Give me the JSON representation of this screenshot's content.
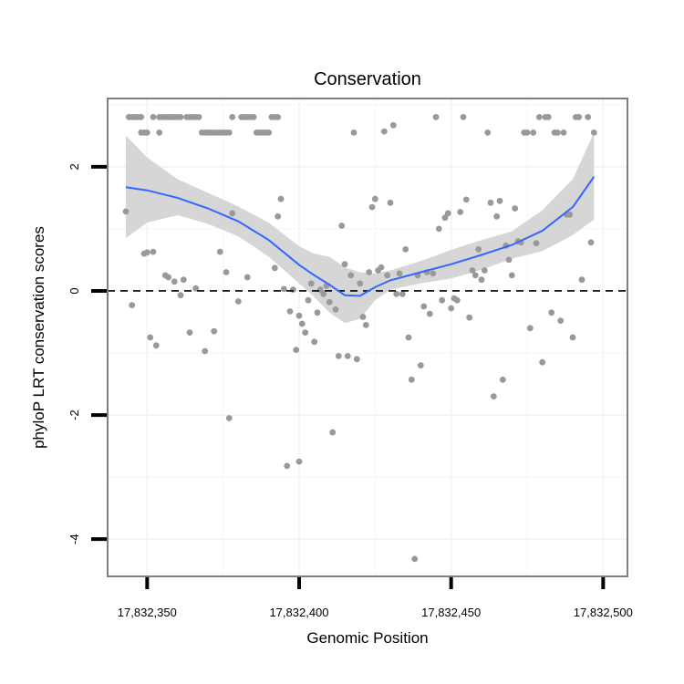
{
  "chart_data": {
    "type": "scatter",
    "title": "Conservation",
    "xlabel": "Genomic Position",
    "ylabel": "phyloP LRT conservation scores",
    "xlim": [
      17832337,
      17832508
    ],
    "ylim": [
      -4.6,
      3.1
    ],
    "x_ticks": [
      17832350,
      17832400,
      17832450,
      17832500
    ],
    "x_tick_labels": [
      "17,832,350",
      "17,832,400",
      "17,832,450",
      "17,832,500"
    ],
    "y_ticks": [
      -4,
      -2,
      0,
      2
    ],
    "y_tick_labels": [
      "-4",
      "-2",
      "0",
      "2"
    ],
    "reference_line": {
      "y": 0,
      "style": "dashed"
    },
    "colors": {
      "points": "#999999",
      "smooth": "#3366ff",
      "ribbon": "#d6d6d6",
      "panel_border": "#7f7f7f",
      "grid": "#f2f2f2"
    },
    "points": [
      [
        17832344,
        2.8
      ],
      [
        17832345,
        2.8
      ],
      [
        17832346,
        2.8
      ],
      [
        17832347,
        2.8
      ],
      [
        17832348,
        2.8
      ],
      [
        17832348,
        2.55
      ],
      [
        17832349,
        2.55
      ],
      [
        17832350,
        2.55
      ],
      [
        17832352,
        2.8
      ],
      [
        17832354,
        2.8
      ],
      [
        17832355,
        2.8
      ],
      [
        17832356,
        2.8
      ],
      [
        17832357,
        2.8
      ],
      [
        17832358,
        2.8
      ],
      [
        17832359,
        2.8
      ],
      [
        17832360,
        2.8
      ],
      [
        17832361,
        2.8
      ],
      [
        17832363,
        2.8
      ],
      [
        17832364,
        2.8
      ],
      [
        17832365,
        2.8
      ],
      [
        17832366,
        2.8
      ],
      [
        17832367,
        2.8
      ],
      [
        17832368,
        2.55
      ],
      [
        17832369,
        2.55
      ],
      [
        17832370,
        2.55
      ],
      [
        17832371,
        2.55
      ],
      [
        17832372,
        2.55
      ],
      [
        17832373,
        2.55
      ],
      [
        17832374,
        2.55
      ],
      [
        17832375,
        2.55
      ],
      [
        17832376,
        2.55
      ],
      [
        17832377,
        2.55
      ],
      [
        17832378,
        2.8
      ],
      [
        17832381,
        2.8
      ],
      [
        17832382,
        2.8
      ],
      [
        17832383,
        2.8
      ],
      [
        17832384,
        2.8
      ],
      [
        17832385,
        2.8
      ],
      [
        17832386,
        2.55
      ],
      [
        17832387,
        2.55
      ],
      [
        17832388,
        2.55
      ],
      [
        17832389,
        2.55
      ],
      [
        17832390,
        2.55
      ],
      [
        17832391,
        2.8
      ],
      [
        17832392,
        2.8
      ],
      [
        17832393,
        2.8
      ],
      [
        17832354,
        2.55
      ],
      [
        17832343,
        1.28
      ],
      [
        17832345,
        -0.23
      ],
      [
        17832349,
        0.6
      ],
      [
        17832350,
        0.62
      ],
      [
        17832351,
        -0.75
      ],
      [
        17832352,
        0.63
      ],
      [
        17832353,
        -0.88
      ],
      [
        17832356,
        0.25
      ],
      [
        17832357,
        0.22
      ],
      [
        17832359,
        0.15
      ],
      [
        17832361,
        -0.07
      ],
      [
        17832362,
        0.18
      ],
      [
        17832364,
        -0.67
      ],
      [
        17832366,
        0.04
      ],
      [
        17832369,
        -0.97
      ],
      [
        17832372,
        -0.65
      ],
      [
        17832374,
        0.63
      ],
      [
        17832376,
        0.3
      ],
      [
        17832377,
        -2.05
      ],
      [
        17832378,
        1.25
      ],
      [
        17832380,
        -0.17
      ],
      [
        17832383,
        0.22
      ],
      [
        17832392,
        0.37
      ],
      [
        17832393,
        1.2
      ],
      [
        17832394,
        1.48
      ],
      [
        17832395,
        0.03
      ],
      [
        17832396,
        -2.82
      ],
      [
        17832397,
        -0.33
      ],
      [
        17832398,
        0.02
      ],
      [
        17832399,
        -0.95
      ],
      [
        17832400,
        -2.75
      ],
      [
        17832400,
        -0.4
      ],
      [
        17832401,
        -0.53
      ],
      [
        17832402,
        -0.67
      ],
      [
        17832403,
        -0.15
      ],
      [
        17832404,
        0.12
      ],
      [
        17832405,
        -0.82
      ],
      [
        17832406,
        -0.35
      ],
      [
        17832407,
        0.02
      ],
      [
        17832408,
        -0.05
      ],
      [
        17832409,
        0.08
      ],
      [
        17832410,
        -0.18
      ],
      [
        17832411,
        -2.28
      ],
      [
        17832412,
        -0.3
      ],
      [
        17832413,
        -1.05
      ],
      [
        17832414,
        1.05
      ],
      [
        17832415,
        0.43
      ],
      [
        17832416,
        -1.05
      ],
      [
        17832417,
        0.25
      ],
      [
        17832418,
        2.55
      ],
      [
        17832419,
        -1.1
      ],
      [
        17832420,
        0.12
      ],
      [
        17832421,
        -0.42
      ],
      [
        17832422,
        -0.55
      ],
      [
        17832423,
        0.3
      ],
      [
        17832424,
        1.35
      ],
      [
        17832425,
        1.48
      ],
      [
        17832426,
        0.33
      ],
      [
        17832427,
        0.38
      ],
      [
        17832428,
        2.57
      ],
      [
        17832429,
        0.25
      ],
      [
        17832430,
        1.42
      ],
      [
        17832431,
        2.67
      ],
      [
        17832432,
        -0.05
      ],
      [
        17832433,
        0.28
      ],
      [
        17832434,
        -0.05
      ],
      [
        17832435,
        0.67
      ],
      [
        17832436,
        -0.75
      ],
      [
        17832437,
        -1.43
      ],
      [
        17832438,
        -4.32
      ],
      [
        17832439,
        0.25
      ],
      [
        17832440,
        -1.2
      ],
      [
        17832441,
        -0.25
      ],
      [
        17832442,
        0.3
      ],
      [
        17832443,
        -0.37
      ],
      [
        17832444,
        0.28
      ],
      [
        17832445,
        2.8
      ],
      [
        17832446,
        1.0
      ],
      [
        17832447,
        -0.15
      ],
      [
        17832448,
        1.18
      ],
      [
        17832449,
        1.25
      ],
      [
        17832450,
        -0.28
      ],
      [
        17832451,
        -0.12
      ],
      [
        17832452,
        -0.15
      ],
      [
        17832453,
        1.27
      ],
      [
        17832454,
        2.8
      ],
      [
        17832455,
        1.47
      ],
      [
        17832456,
        -0.43
      ],
      [
        17832457,
        0.33
      ],
      [
        17832458,
        0.25
      ],
      [
        17832459,
        0.67
      ],
      [
        17832460,
        0.18
      ],
      [
        17832461,
        0.33
      ],
      [
        17832462,
        2.55
      ],
      [
        17832463,
        1.42
      ],
      [
        17832464,
        -1.7
      ],
      [
        17832465,
        1.2
      ],
      [
        17832466,
        1.45
      ],
      [
        17832467,
        -1.43
      ],
      [
        17832468,
        0.73
      ],
      [
        17832469,
        0.5
      ],
      [
        17832470,
        0.25
      ],
      [
        17832471,
        1.33
      ],
      [
        17832472,
        0.8
      ],
      [
        17832473,
        0.78
      ],
      [
        17832474,
        2.55
      ],
      [
        17832475,
        2.55
      ],
      [
        17832476,
        -0.6
      ],
      [
        17832477,
        2.55
      ],
      [
        17832478,
        0.77
      ],
      [
        17832479,
        2.8
      ],
      [
        17832480,
        -1.15
      ],
      [
        17832481,
        2.8
      ],
      [
        17832482,
        2.8
      ],
      [
        17832483,
        -0.35
      ],
      [
        17832484,
        2.55
      ],
      [
        17832485,
        2.55
      ],
      [
        17832486,
        -0.48
      ],
      [
        17832487,
        2.55
      ],
      [
        17832488,
        1.23
      ],
      [
        17832489,
        1.23
      ],
      [
        17832490,
        -0.75
      ],
      [
        17832491,
        2.8
      ],
      [
        17832492,
        2.8
      ],
      [
        17832493,
        0.18
      ],
      [
        17832495,
        2.8
      ],
      [
        17832496,
        0.78
      ],
      [
        17832497,
        2.55
      ]
    ],
    "smooth_fit": {
      "x": [
        17832343,
        17832350,
        17832360,
        17832370,
        17832380,
        17832390,
        17832400,
        17832405,
        17832410,
        17832415,
        17832420,
        17832425,
        17832430,
        17832440,
        17832450,
        17832460,
        17832470,
        17832480,
        17832490,
        17832497
      ],
      "y": [
        1.67,
        1.62,
        1.5,
        1.33,
        1.12,
        0.82,
        0.42,
        0.25,
        0.1,
        -0.07,
        -0.08,
        0.06,
        0.17,
        0.3,
        0.43,
        0.58,
        0.74,
        0.97,
        1.35,
        1.84
      ],
      "lower": [
        0.85,
        1.1,
        1.22,
        1.08,
        0.88,
        0.55,
        0.12,
        -0.1,
        -0.35,
        -0.52,
        -0.45,
        -0.15,
        0.02,
        0.12,
        0.2,
        0.34,
        0.52,
        0.64,
        0.9,
        1.15
      ],
      "upper": [
        2.5,
        2.15,
        1.8,
        1.58,
        1.36,
        1.1,
        0.72,
        0.6,
        0.55,
        0.38,
        0.3,
        0.28,
        0.33,
        0.48,
        0.66,
        0.82,
        0.96,
        1.3,
        1.8,
        2.55
      ]
    }
  }
}
